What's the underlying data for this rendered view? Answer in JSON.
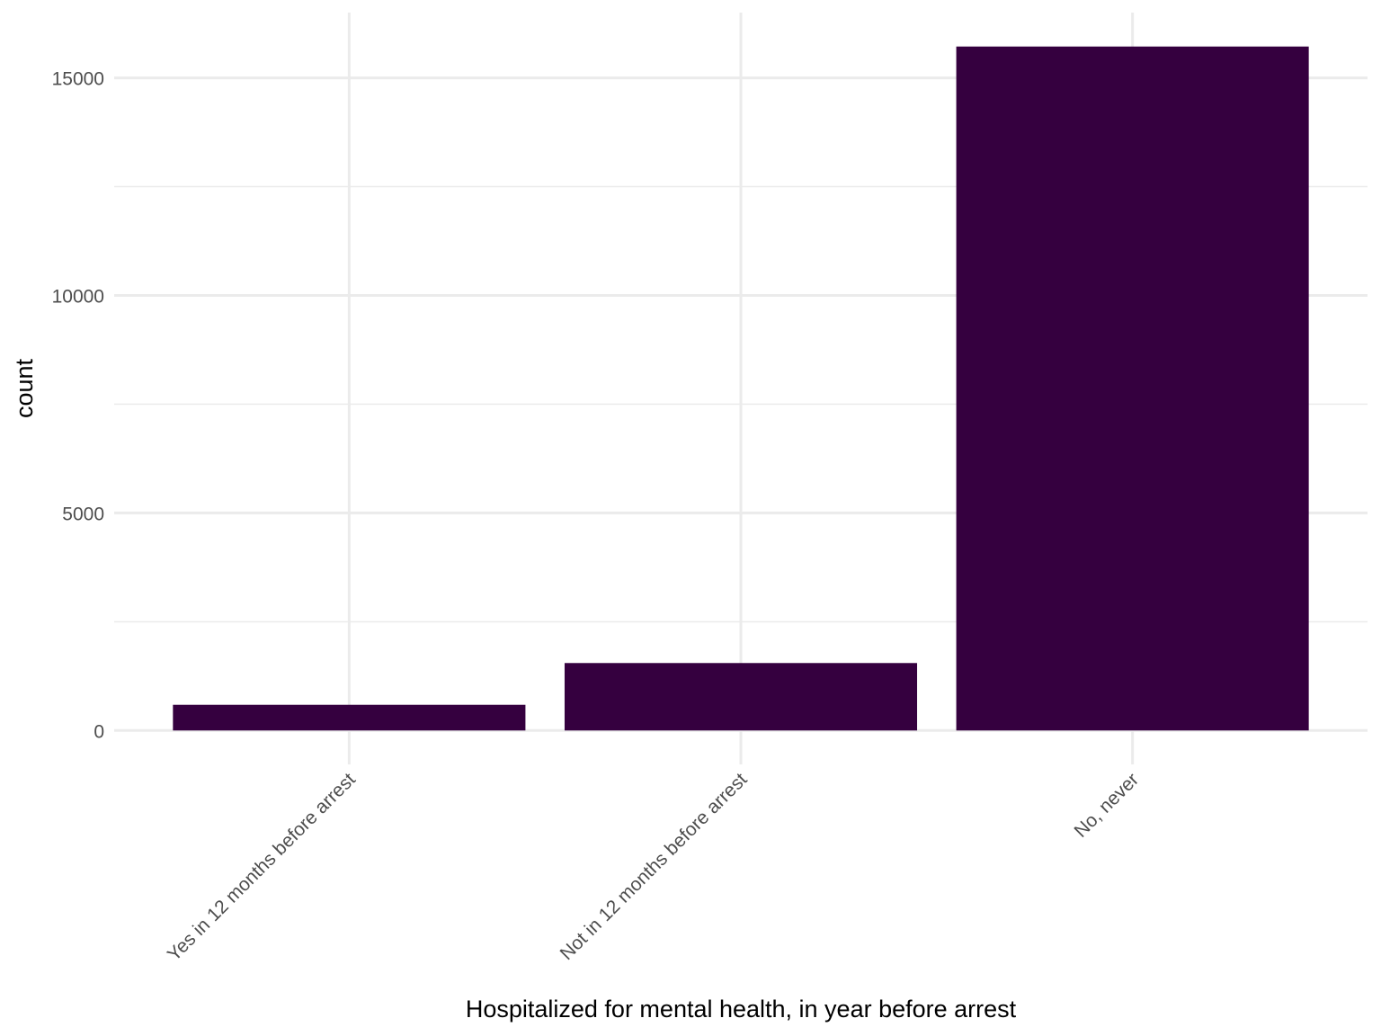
{
  "chart_data": {
    "type": "bar",
    "title": "",
    "xlabel": "Hospitalized for mental health, in year before arrest",
    "ylabel": "count",
    "categories": [
      "Yes in 12 months before arrest",
      "Not in 12 months before arrest",
      "No, never"
    ],
    "values": [
      590,
      1550,
      15720
    ],
    "ylim": [
      -780,
      16500
    ],
    "yticks": [
      0,
      5000,
      10000,
      15000
    ],
    "ytick_labels": [
      "0",
      "5000",
      "10000",
      "15000"
    ],
    "y_minor_ticks": [
      2500,
      7500,
      12500
    ],
    "grid": true,
    "legend": "none",
    "bar_color": "#35003f"
  }
}
